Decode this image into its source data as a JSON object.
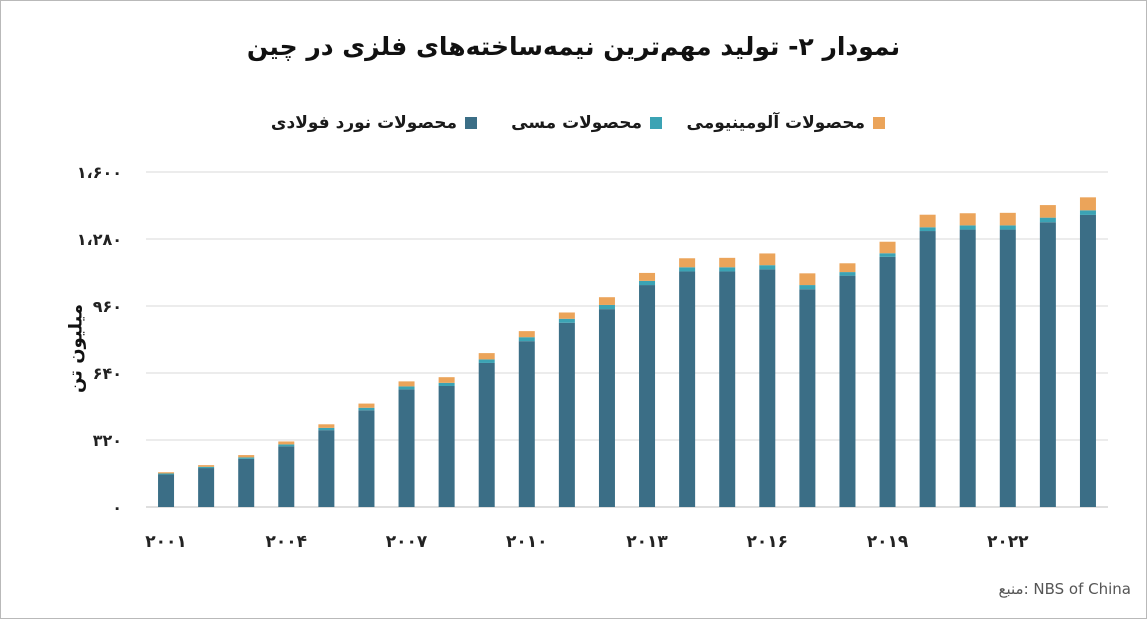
{
  "title": "نمودار ۲- تولید مهم‌ترین نیمه‌ساخته‌های فلزی در چین",
  "source": "منبع: NBS of China",
  "colors": {
    "steel": "#3b6e86",
    "copper": "#3ba3b4",
    "aluminum": "#eba45a",
    "grid": "#d9d9d9"
  },
  "chart_data": {
    "type": "bar",
    "stacked": true,
    "title": "نمودار ۲- تولید مهم‌ترین نیمه‌ساخته‌های فلزی در چین",
    "ylabel": "میلیون تن",
    "xlabel": "",
    "ylim": [
      0,
      1600
    ],
    "yticks": [
      0,
      320,
      640,
      960,
      1280,
      1600
    ],
    "ytick_labels": [
      "۰",
      "۳۲۰",
      "۶۴۰",
      "۹۶۰",
      "۱،۲۸۰",
      "۱،۶۰۰"
    ],
    "grid": true,
    "legend_position": "top",
    "categories": [
      2001,
      2002,
      2003,
      2004,
      2005,
      2006,
      2007,
      2008,
      2009,
      2010,
      2011,
      2012,
      2013,
      2014,
      2015,
      2016,
      2017,
      2018,
      2019,
      2020,
      2021,
      2022,
      2023,
      2024
    ],
    "xtick_labels": [
      {
        "year": 2001,
        "label": "۲۰۰۱"
      },
      {
        "year": 2004,
        "label": "۲۰۰۴"
      },
      {
        "year": 2007,
        "label": "۲۰۰۷"
      },
      {
        "year": 2010,
        "label": "۲۰۱۰"
      },
      {
        "year": 2013,
        "label": "۲۰۱۳"
      },
      {
        "year": 2016,
        "label": "۲۰۱۶"
      },
      {
        "year": 2019,
        "label": "۲۰۱۹"
      },
      {
        "year": 2022,
        "label": "۲۰۲۲"
      }
    ],
    "series": [
      {
        "name": "محصولات نورد فولادی",
        "color": "#3b6e86",
        "values": [
          155,
          186,
          230,
          290,
          367,
          462,
          562,
          578,
          688,
          792,
          880,
          945,
          1060,
          1125,
          1125,
          1135,
          1040,
          1105,
          1195,
          1318,
          1325,
          1325,
          1360,
          1395
        ]
      },
      {
        "name": "محصولات مسی",
        "color": "#3ba3b4",
        "values": [
          5,
          6,
          7,
          9,
          11,
          12,
          14,
          15,
          17,
          19,
          19,
          20,
          20,
          20,
          20,
          20,
          20,
          17,
          17,
          18,
          20,
          20,
          22,
          22
        ]
      },
      {
        "name": "محصولات آلومینیومی",
        "color": "#eba45a",
        "values": [
          6,
          8,
          11,
          14,
          17,
          20,
          24,
          27,
          30,
          29,
          30,
          37,
          38,
          43,
          45,
          56,
          56,
          42,
          55,
          60,
          58,
          60,
          60,
          62
        ]
      }
    ]
  }
}
